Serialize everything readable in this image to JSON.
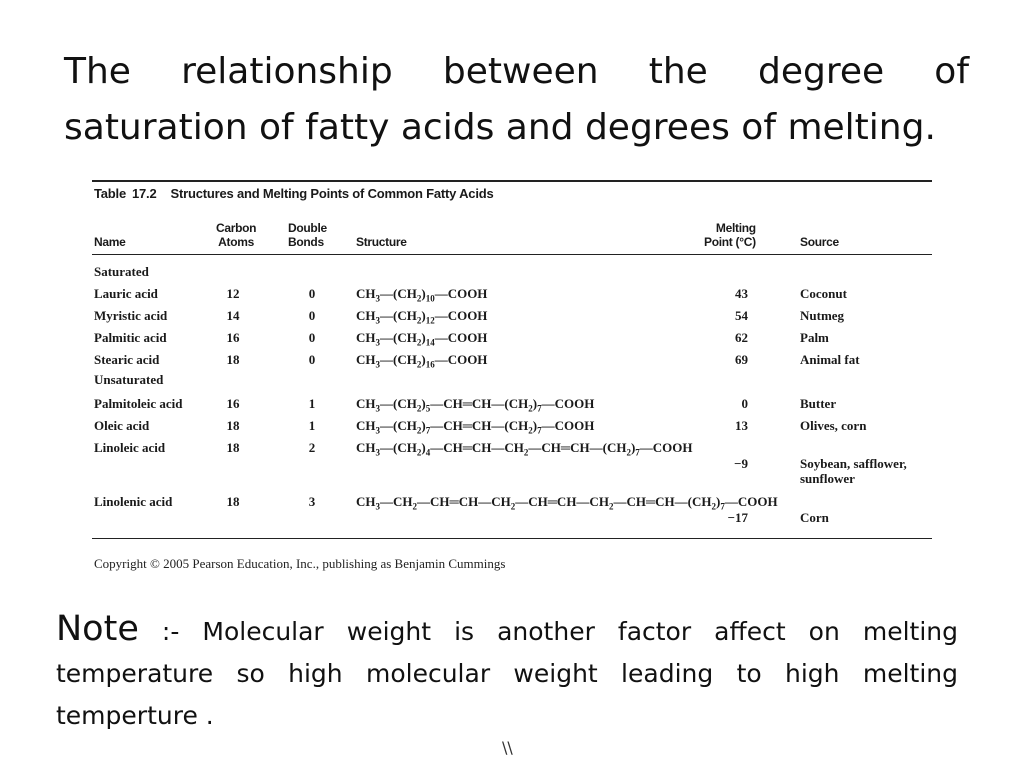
{
  "slide": {
    "title": "The relationship between the degree of saturation of fatty acids and degrees of melting.",
    "note_label": "Note",
    "note_text": ":- Molecular weight is another factor affect on melting temperature so high molecular weight leading to high melting temperture .",
    "stray_mark": "\\\\"
  },
  "table": {
    "caption_prefix": "Table",
    "caption_number": "17.2",
    "caption_title": "Structures and Melting Points of Common Fatty Acids",
    "headers": {
      "name": "Name",
      "carbon_line1": "Carbon",
      "carbon_line2": "Atoms",
      "double_line1": "Double",
      "double_line2": "Bonds",
      "structure": "Structure",
      "melting_line1": "Melting",
      "melting_line2": "Point (°C)",
      "source": "Source"
    },
    "groups": {
      "saturated": "Saturated",
      "unsaturated": "Unsaturated"
    },
    "rows": [
      {
        "name": "Lauric acid",
        "carbon": "12",
        "double": "0",
        "structure": "CH3—(CH2)10—COOH",
        "melting": "43",
        "source": "Coconut"
      },
      {
        "name": "Myristic acid",
        "carbon": "14",
        "double": "0",
        "structure": "CH3—(CH2)12—COOH",
        "melting": "54",
        "source": "Nutmeg"
      },
      {
        "name": "Palmitic acid",
        "carbon": "16",
        "double": "0",
        "structure": "CH3—(CH2)14—COOH",
        "melting": "62",
        "source": "Palm"
      },
      {
        "name": "Stearic acid",
        "carbon": "18",
        "double": "0",
        "structure": "CH3—(CH2)16—COOH",
        "melting": "69",
        "source": "Animal fat"
      },
      {
        "name": "Palmitoleic acid",
        "carbon": "16",
        "double": "1",
        "structure": "CH3—(CH2)5—CH═CH—(CH2)7—COOH",
        "melting": "0",
        "source": "Butter"
      },
      {
        "name": "Oleic acid",
        "carbon": "18",
        "double": "1",
        "structure": "CH3—(CH2)7—CH═CH—(CH2)7—COOH",
        "melting": "13",
        "source": "Olives, corn"
      },
      {
        "name": "Linoleic acid",
        "carbon": "18",
        "double": "2",
        "structure": "CH3—(CH2)4—CH═CH—CH2—CH═CH—(CH2)7—COOH",
        "melting": "−9",
        "source": "Soybean, safflower, sunflower"
      },
      {
        "name": "Linolenic acid",
        "carbon": "18",
        "double": "3",
        "structure": "CH3—CH2—CH═CH—CH2—CH═CH—CH2—CH═CH—(CH2)7—COOH",
        "melting": "−17",
        "source": "Corn"
      }
    ],
    "copyright": "Copyright © 2005 Pearson Education, Inc., publishing as Benjamin Cummings"
  }
}
